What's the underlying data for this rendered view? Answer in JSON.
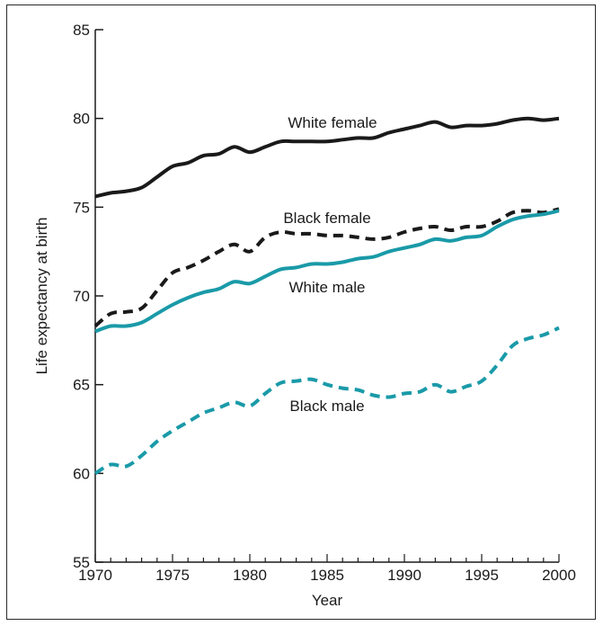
{
  "chart_data": {
    "type": "line",
    "xlabel": "Year",
    "ylabel": "Life expectancy at birth",
    "xlim": [
      1970,
      2000
    ],
    "ylim": [
      55,
      85
    ],
    "xticks": [
      1970,
      1975,
      1980,
      1985,
      1990,
      1995,
      2000
    ],
    "yticks": [
      55,
      60,
      65,
      70,
      75,
      80,
      85
    ],
    "grid": false,
    "legend": "none",
    "series": [
      {
        "name": "White female",
        "color": "#1a1a1a",
        "dash": "solid",
        "x": [
          1970,
          1971,
          1972,
          1973,
          1974,
          1975,
          1976,
          1977,
          1978,
          1979,
          1980,
          1981,
          1982,
          1983,
          1984,
          1985,
          1986,
          1987,
          1988,
          1989,
          1990,
          1991,
          1992,
          1993,
          1994,
          1995,
          1996,
          1997,
          1998,
          1999,
          2000
        ],
        "values": [
          75.6,
          75.8,
          75.9,
          76.1,
          76.7,
          77.3,
          77.5,
          77.9,
          78.0,
          78.4,
          78.1,
          78.4,
          78.7,
          78.7,
          78.7,
          78.7,
          78.8,
          78.9,
          78.9,
          79.2,
          79.4,
          79.6,
          79.8,
          79.5,
          79.6,
          79.6,
          79.7,
          79.9,
          80.0,
          79.9,
          80.0
        ]
      },
      {
        "name": "Black female",
        "color": "#1a1a1a",
        "dash": "dashed",
        "x": [
          1970,
          1971,
          1972,
          1973,
          1974,
          1975,
          1976,
          1977,
          1978,
          1979,
          1980,
          1981,
          1982,
          1983,
          1984,
          1985,
          1986,
          1987,
          1988,
          1989,
          1990,
          1991,
          1992,
          1993,
          1994,
          1995,
          1996,
          1997,
          1998,
          1999,
          2000
        ],
        "values": [
          68.3,
          69.0,
          69.1,
          69.3,
          70.3,
          71.3,
          71.6,
          72.0,
          72.5,
          72.9,
          72.5,
          73.3,
          73.6,
          73.5,
          73.5,
          73.4,
          73.4,
          73.3,
          73.2,
          73.3,
          73.6,
          73.8,
          73.9,
          73.7,
          73.9,
          73.9,
          74.2,
          74.7,
          74.8,
          74.7,
          74.9
        ]
      },
      {
        "name": "White male",
        "color": "#1a9aa8",
        "dash": "solid",
        "x": [
          1970,
          1971,
          1972,
          1973,
          1974,
          1975,
          1976,
          1977,
          1978,
          1979,
          1980,
          1981,
          1982,
          1983,
          1984,
          1985,
          1986,
          1987,
          1988,
          1989,
          1990,
          1991,
          1992,
          1993,
          1994,
          1995,
          1996,
          1997,
          1998,
          1999,
          2000
        ],
        "values": [
          68.0,
          68.3,
          68.3,
          68.5,
          69.0,
          69.5,
          69.9,
          70.2,
          70.4,
          70.8,
          70.7,
          71.1,
          71.5,
          71.6,
          71.8,
          71.8,
          71.9,
          72.1,
          72.2,
          72.5,
          72.7,
          72.9,
          73.2,
          73.1,
          73.3,
          73.4,
          73.9,
          74.3,
          74.5,
          74.6,
          74.8
        ]
      },
      {
        "name": "Black male",
        "color": "#1a9aa8",
        "dash": "dashed",
        "x": [
          1970,
          1971,
          1972,
          1973,
          1974,
          1975,
          1976,
          1977,
          1978,
          1979,
          1980,
          1981,
          1982,
          1983,
          1984,
          1985,
          1986,
          1987,
          1988,
          1989,
          1990,
          1991,
          1992,
          1993,
          1994,
          1995,
          1996,
          1997,
          1998,
          1999,
          2000
        ],
        "values": [
          60.0,
          60.5,
          60.4,
          61.0,
          61.8,
          62.4,
          62.9,
          63.4,
          63.7,
          64.0,
          63.8,
          64.5,
          65.1,
          65.2,
          65.3,
          65.0,
          64.8,
          64.7,
          64.4,
          64.3,
          64.5,
          64.6,
          65.0,
          64.6,
          64.9,
          65.2,
          66.1,
          67.2,
          67.6,
          67.8,
          68.2
        ]
      }
    ]
  }
}
